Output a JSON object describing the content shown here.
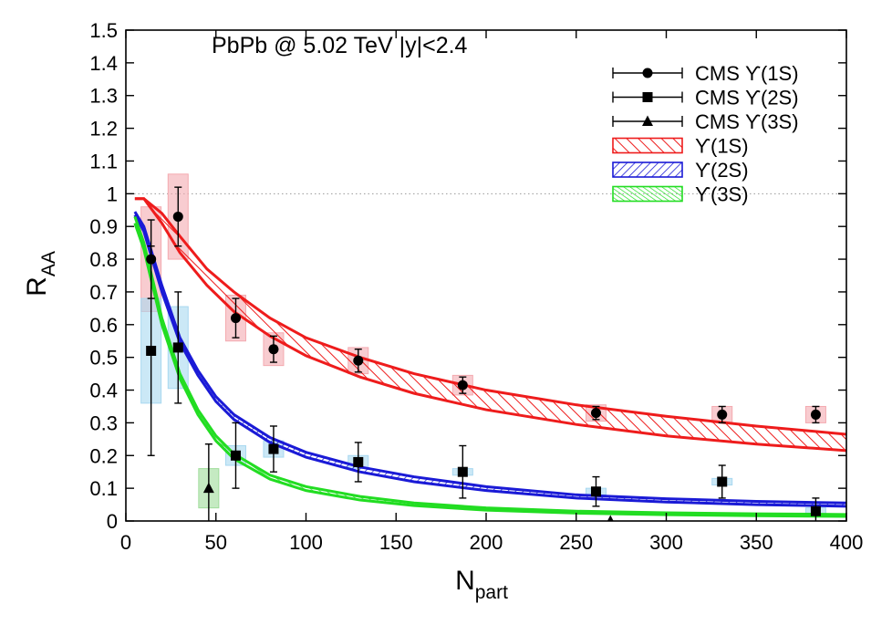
{
  "chart_data": {
    "type": "scatter",
    "annotation": "PbPb @ 5.02 TeV |y|<2.4",
    "xlabel": {
      "main": "N",
      "sub": "part"
    },
    "ylabel": {
      "main": "R",
      "sub": "AA"
    },
    "xlim": [
      0,
      400
    ],
    "ylim": [
      0,
      1.5
    ],
    "x_ticks": [
      "0",
      "50",
      "100",
      "150",
      "200",
      "250",
      "300",
      "350",
      "400"
    ],
    "y_ticks": [
      "0",
      "0.1",
      "0.2",
      "0.3",
      "0.4",
      "0.5",
      "0.6",
      "0.7",
      "0.8",
      "0.9",
      "1",
      "1.1",
      "1.2",
      "1.3",
      "1.4",
      "1.5"
    ],
    "reference_line": {
      "y": 1,
      "style": "dotted"
    },
    "grid": false,
    "legend_position": "top-right",
    "data_series": [
      {
        "name": "CMS ϒ(1S)",
        "marker": "circle",
        "color": "#000000",
        "syst_color": "#f4aab0",
        "x": [
          14,
          29,
          61,
          82,
          129,
          187,
          261,
          331,
          383
        ],
        "y": [
          0.8,
          0.93,
          0.62,
          0.525,
          0.49,
          0.415,
          0.33,
          0.325,
          0.325
        ],
        "stat": [
          0.12,
          0.09,
          0.06,
          0.04,
          0.035,
          0.025,
          0.02,
          0.025,
          0.025
        ],
        "syst": [
          0.16,
          0.13,
          0.07,
          0.05,
          0.04,
          0.03,
          0.025,
          0.025,
          0.025
        ]
      },
      {
        "name": "CMS ϒ(2S)",
        "marker": "square",
        "color": "#000000",
        "syst_color": "#a8d8f0",
        "x": [
          14,
          29,
          61,
          82,
          129,
          187,
          261,
          331,
          383
        ],
        "y": [
          0.52,
          0.53,
          0.2,
          0.22,
          0.18,
          0.15,
          0.09,
          0.12,
          0.03
        ],
        "stat": [
          0.32,
          0.17,
          0.1,
          0.07,
          0.06,
          0.08,
          0.045,
          0.05,
          0.04
        ],
        "syst": [
          0.16,
          0.125,
          0.03,
          0.025,
          0.02,
          0.01,
          0.01,
          0.01,
          0.01
        ]
      },
      {
        "name": "CMS ϒ(3S)",
        "marker": "triangle",
        "color": "#000000",
        "syst_color": "#9fdc9a",
        "x": [
          46,
          269
        ],
        "y": [
          0.1,
          0.0
        ],
        "stat": [
          0.135,
          0.0
        ],
        "syst": [
          0.06,
          0.0
        ]
      }
    ],
    "model_bands": [
      {
        "name": "ϒ(1S)",
        "color": "#ee1c1c",
        "x": [
          5,
          10,
          20,
          30,
          45,
          60,
          80,
          100,
          130,
          160,
          200,
          250,
          300,
          350,
          400
        ],
        "upper": [
          0.985,
          0.985,
          0.94,
          0.87,
          0.77,
          0.7,
          0.62,
          0.56,
          0.5,
          0.45,
          0.4,
          0.355,
          0.32,
          0.29,
          0.265
        ],
        "lower": [
          0.985,
          0.985,
          0.91,
          0.82,
          0.72,
          0.64,
          0.565,
          0.505,
          0.44,
          0.39,
          0.34,
          0.295,
          0.26,
          0.235,
          0.215
        ]
      },
      {
        "name": "ϒ(2S)",
        "color": "#1a1ad6",
        "x": [
          5,
          10,
          20,
          30,
          40,
          50,
          60,
          80,
          100,
          130,
          160,
          200,
          250,
          300,
          350,
          400
        ],
        "upper": [
          0.945,
          0.9,
          0.72,
          0.56,
          0.46,
          0.38,
          0.325,
          0.255,
          0.21,
          0.165,
          0.135,
          0.105,
          0.08,
          0.068,
          0.06,
          0.055
        ],
        "lower": [
          0.935,
          0.885,
          0.7,
          0.545,
          0.445,
          0.365,
          0.31,
          0.24,
          0.195,
          0.15,
          0.12,
          0.093,
          0.07,
          0.058,
          0.05,
          0.045
        ]
      },
      {
        "name": "ϒ(3S)",
        "color": "#22dd22",
        "x": [
          5,
          10,
          20,
          30,
          40,
          50,
          60,
          80,
          100,
          130,
          160,
          200,
          250,
          300,
          350,
          400
        ],
        "upper": [
          0.93,
          0.85,
          0.62,
          0.45,
          0.34,
          0.26,
          0.205,
          0.14,
          0.105,
          0.075,
          0.055,
          0.04,
          0.03,
          0.025,
          0.022,
          0.02
        ],
        "lower": [
          0.91,
          0.83,
          0.6,
          0.435,
          0.325,
          0.245,
          0.19,
          0.128,
          0.093,
          0.064,
          0.047,
          0.033,
          0.024,
          0.019,
          0.016,
          0.014
        ]
      }
    ]
  }
}
